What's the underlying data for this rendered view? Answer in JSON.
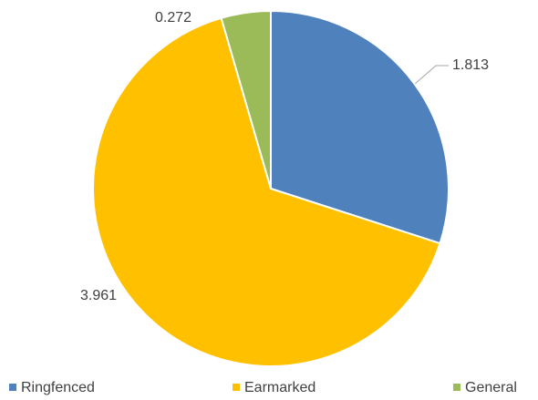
{
  "chart_data": {
    "type": "pie",
    "categories": [
      "Ringfenced",
      "Earmarked",
      "General"
    ],
    "values": [
      1.813,
      3.961,
      0.272
    ],
    "colors": [
      "#4f81bd",
      "#ffc000",
      "#9bbb59"
    ],
    "legend": "bottom"
  }
}
